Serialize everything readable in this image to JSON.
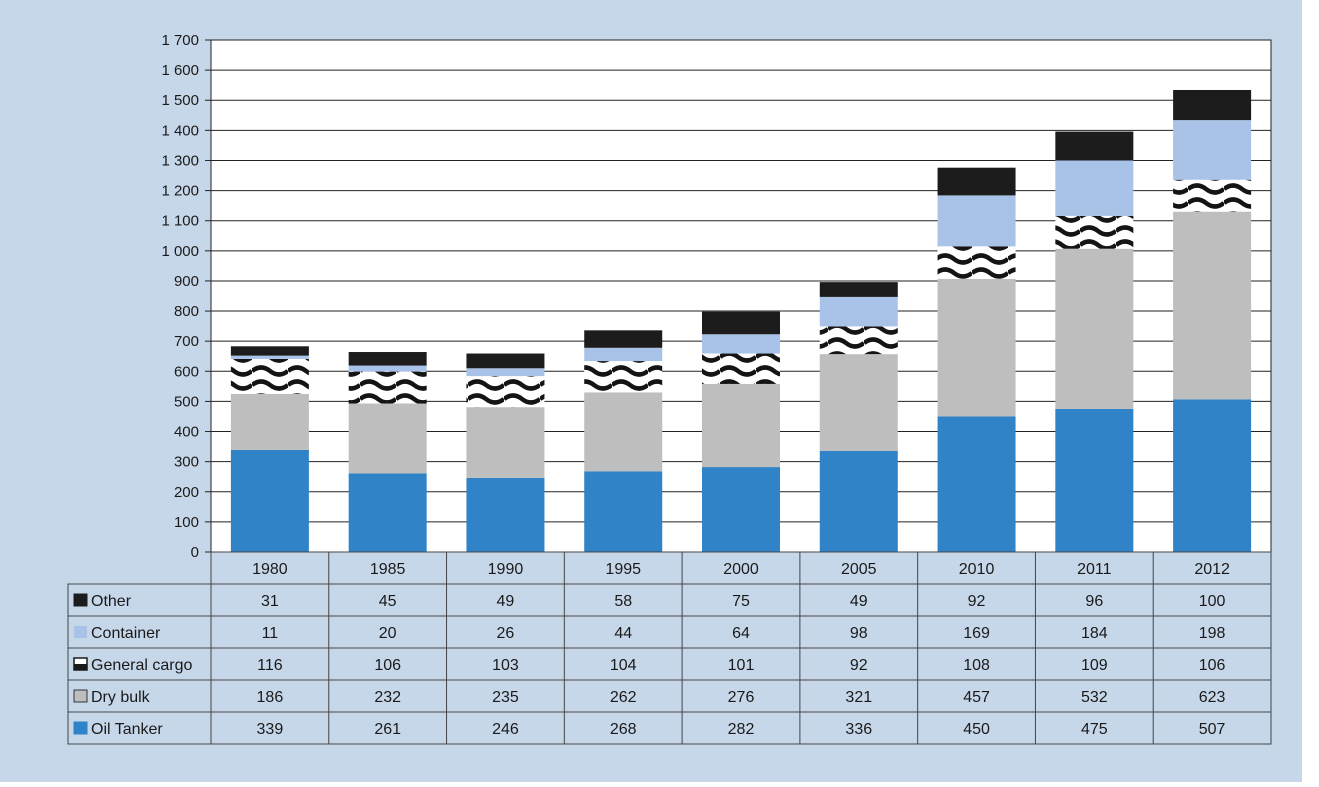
{
  "chart_data": {
    "type": "bar",
    "stacked": true,
    "title": "",
    "xlabel": "",
    "ylabel": "",
    "ylim": [
      0,
      1700
    ],
    "yticks": [
      0,
      100,
      200,
      300,
      400,
      500,
      600,
      700,
      800,
      900,
      1000,
      1100,
      1200,
      1300,
      1400,
      1500,
      1600,
      1700
    ],
    "ytick_labels": [
      "0",
      "100",
      "200",
      "300",
      "400",
      "500",
      "600",
      "700",
      "800",
      "900",
      "1 000",
      "1 100",
      "1 200",
      "1 300",
      "1 400",
      "1 500",
      "1 600",
      "1 700"
    ],
    "grid": true,
    "legend": "data table below chart",
    "categories": [
      "1980",
      "1985",
      "1990",
      "1995",
      "2000",
      "2005",
      "2010",
      "2011",
      "2012"
    ],
    "series": [
      {
        "name": "Oil Tanker",
        "color": "#2f83c6",
        "pattern": "solid",
        "values": [
          339,
          261,
          246,
          268,
          282,
          336,
          450,
          475,
          507
        ]
      },
      {
        "name": "Dry bulk",
        "color": "#bebebe",
        "pattern": "solid",
        "values": [
          186,
          232,
          235,
          262,
          276,
          321,
          457,
          532,
          623
        ]
      },
      {
        "name": "General cargo",
        "color": "#ffffff",
        "pattern": "waves",
        "values": [
          116,
          106,
          103,
          104,
          101,
          92,
          108,
          109,
          106
        ]
      },
      {
        "name": "Container",
        "color": "#a9c3e8",
        "pattern": "solid",
        "values": [
          11,
          20,
          26,
          44,
          64,
          98,
          169,
          184,
          198
        ]
      },
      {
        "name": "Other",
        "color": "#1c1c1c",
        "pattern": "solid",
        "values": [
          31,
          45,
          49,
          58,
          75,
          49,
          92,
          96,
          100
        ]
      }
    ],
    "table_row_order": [
      "Other",
      "Container",
      "General cargo",
      "Dry bulk",
      "Oil Tanker"
    ]
  }
}
